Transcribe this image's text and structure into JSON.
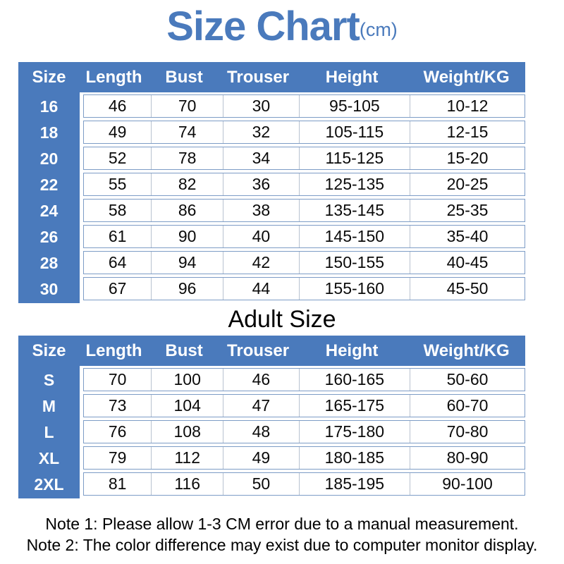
{
  "title": {
    "main": "Size Chart",
    "unit": "(cm)"
  },
  "section_label": "Adult Size",
  "tables": [
    {
      "name": "youth-size-table",
      "headers": [
        "Size",
        "Length",
        "Bust",
        "Trouser",
        "Height",
        "Weight/KG"
      ],
      "rows": [
        {
          "size": "16",
          "cells": [
            "46",
            "70",
            "30",
            "95-105",
            "10-12"
          ]
        },
        {
          "size": "18",
          "cells": [
            "49",
            "74",
            "32",
            "105-115",
            "12-15"
          ]
        },
        {
          "size": "20",
          "cells": [
            "52",
            "78",
            "34",
            "115-125",
            "15-20"
          ]
        },
        {
          "size": "22",
          "cells": [
            "55",
            "82",
            "36",
            "125-135",
            "20-25"
          ]
        },
        {
          "size": "24",
          "cells": [
            "58",
            "86",
            "38",
            "135-145",
            "25-35"
          ]
        },
        {
          "size": "26",
          "cells": [
            "61",
            "90",
            "40",
            "145-150",
            "35-40"
          ]
        },
        {
          "size": "28",
          "cells": [
            "64",
            "94",
            "42",
            "150-155",
            "40-45"
          ]
        },
        {
          "size": "30",
          "cells": [
            "67",
            "96",
            "44",
            "155-160",
            "45-50"
          ]
        }
      ]
    },
    {
      "name": "adult-size-table",
      "headers": [
        "Size",
        "Length",
        "Bust",
        "Trouser",
        "Height",
        "Weight/KG"
      ],
      "rows": [
        {
          "size": "S",
          "cells": [
            "70",
            "100",
            "46",
            "160-165",
            "50-60"
          ]
        },
        {
          "size": "M",
          "cells": [
            "73",
            "104",
            "47",
            "165-175",
            "60-70"
          ]
        },
        {
          "size": "L",
          "cells": [
            "76",
            "108",
            "48",
            "175-180",
            "70-80"
          ]
        },
        {
          "size": "XL",
          "cells": [
            "79",
            "112",
            "49",
            "180-185",
            "80-90"
          ]
        },
        {
          "size": "2XL",
          "cells": [
            "81",
            "116",
            "50",
            "185-195",
            "90-100"
          ]
        }
      ]
    }
  ],
  "notes": [
    "Note 1: Please allow 1-3 CM error due to a manual measurement.",
    "Note 2: The color difference may exist due to computer monitor display."
  ],
  "colors": {
    "accent": "#4a7abc",
    "rowborder": "#7d9cc6",
    "divider": "#b8c2d0"
  }
}
